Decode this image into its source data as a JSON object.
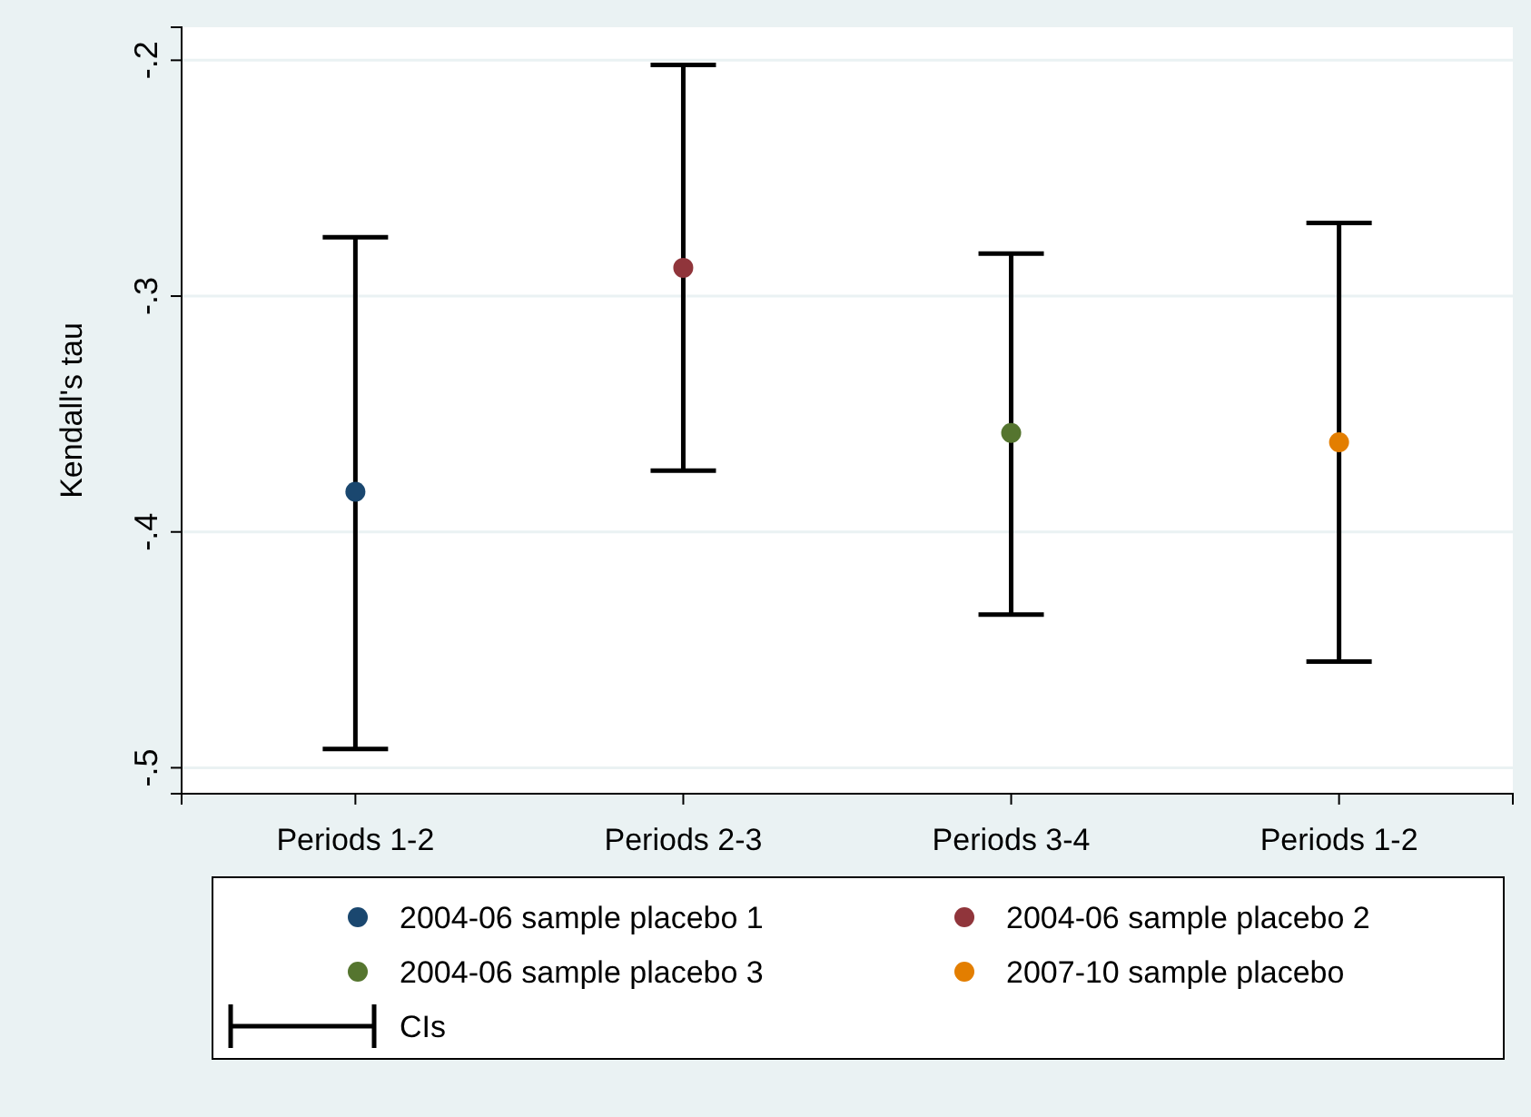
{
  "chart_data": {
    "type": "scatter",
    "ylabel": "Kendall's tau",
    "categories": [
      "Periods 1-2",
      "Periods 2-3",
      "Periods 3-4",
      "Periods 1-2"
    ],
    "series": [
      {
        "name": "2004-06 sample placebo 1",
        "color": "#1a476f",
        "values": [
          -0.383,
          null,
          null,
          null
        ],
        "errors": [
          [
            -0.492,
            -0.275
          ],
          null,
          null,
          null
        ]
      },
      {
        "name": "2004-06 sample placebo 2",
        "color": "#90353b",
        "values": [
          null,
          -0.288,
          null,
          null
        ],
        "errors": [
          null,
          [
            -0.374,
            -0.202
          ],
          null,
          null
        ]
      },
      {
        "name": "2004-06 sample placebo 3",
        "color": "#55752f",
        "values": [
          null,
          null,
          -0.358,
          null
        ],
        "errors": [
          null,
          null,
          [
            -0.435,
            -0.282
          ],
          null
        ]
      },
      {
        "name": "2007-10 sample placebo",
        "color": "#e37e00",
        "values": [
          null,
          null,
          null,
          -0.362
        ],
        "errors": [
          null,
          null,
          null,
          [
            -0.455,
            -0.269
          ]
        ]
      }
    ],
    "ylim": [
      -0.511,
      -0.186
    ],
    "yticks": [
      {
        "value": -0.5,
        "label": "-.5"
      },
      {
        "value": -0.4,
        "label": "-.4"
      },
      {
        "value": -0.3,
        "label": "-.3"
      },
      {
        "value": -0.2,
        "label": "-.2"
      }
    ],
    "grid": "y",
    "legend": "bottom",
    "marker": "circle",
    "annotations": [
      "CIs"
    ]
  }
}
